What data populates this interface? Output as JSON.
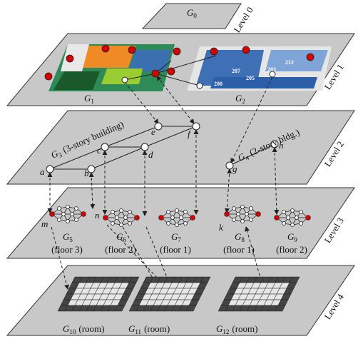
{
  "levels": [
    "Level 0",
    "Level 1",
    "Level 2",
    "Level 3",
    "Level 4"
  ],
  "graphs": [
    {
      "base": "G",
      "sub": "0"
    },
    {
      "base": "G",
      "sub": "1"
    },
    {
      "base": "G",
      "sub": "2"
    },
    {
      "base": "G",
      "sub": "3",
      "note": "(3-story building)"
    },
    {
      "base": "G",
      "sub": "4",
      "note": "(2-story bldg.)"
    },
    {
      "base": "G",
      "sub": "5",
      "note": "(floor 3)"
    },
    {
      "base": "G",
      "sub": "6",
      "note": "(floor 2)"
    },
    {
      "base": "G",
      "sub": "7",
      "note": "(floor 1)"
    },
    {
      "base": "G",
      "sub": "8",
      "note": "(floor 1)"
    },
    {
      "base": "G",
      "sub": "9",
      "note": "(floor 2)"
    },
    {
      "base": "G",
      "sub": "10",
      "note": "(room)"
    },
    {
      "base": "G",
      "sub": "11",
      "note": "(room)"
    },
    {
      "base": "G",
      "sub": "12",
      "note": "(room)"
    }
  ],
  "nodes": [
    "a",
    "b",
    "c",
    "d",
    "e",
    "f",
    "g",
    "h",
    "m",
    "n",
    "k"
  ],
  "map_labels": [
    "203",
    "207",
    "205",
    "200",
    "212"
  ]
}
